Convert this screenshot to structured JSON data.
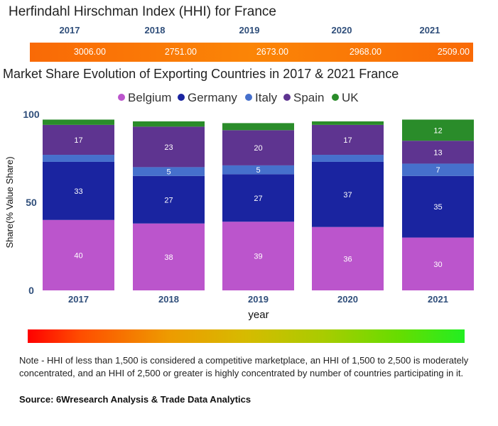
{
  "hhi": {
    "title": "Herfindahl Hirschman Index (HHI) for France",
    "years": [
      "2017",
      "2018",
      "2019",
      "2020",
      "2021"
    ],
    "values": [
      "3006.00",
      "2751.00",
      "2673.00",
      "2968.00",
      "2509.00"
    ],
    "bar_color": "#fb7a06"
  },
  "chart_data": {
    "type": "bar",
    "stacked": true,
    "title": "Market Share Evolution of Exporting Countries in 2017 & 2021 France",
    "xlabel": "year",
    "ylabel": "Share(% Value Share)",
    "ylim": [
      0,
      100
    ],
    "yticks": [
      "0",
      "50",
      "100"
    ],
    "categories": [
      "2017",
      "2018",
      "2019",
      "2020",
      "2021"
    ],
    "legend_position": "top-center",
    "series": [
      {
        "name": "Belgium",
        "color": "#bb55cc",
        "values": [
          40,
          38,
          39,
          36,
          30
        ],
        "labels": [
          "40",
          "38",
          "39",
          "36",
          "30"
        ]
      },
      {
        "name": "Germany",
        "color": "#1a24a0",
        "values": [
          33,
          27,
          27,
          37,
          35
        ],
        "labels": [
          "33",
          "27",
          "27",
          "37",
          "35"
        ]
      },
      {
        "name": "Italy",
        "color": "#4670cc",
        "values": [
          4,
          5,
          5,
          4,
          7
        ],
        "labels": [
          "",
          "5",
          "5",
          "",
          "7"
        ]
      },
      {
        "name": "Spain",
        "color": "#5e3490",
        "values": [
          17,
          23,
          20,
          17,
          13
        ],
        "labels": [
          "17",
          "23",
          "20",
          "17",
          "13"
        ]
      },
      {
        "name": "UK",
        "color": "#2a8c2a",
        "values": [
          3,
          3,
          4,
          2,
          12
        ],
        "labels": [
          "",
          "",
          "",
          "",
          "12"
        ]
      }
    ]
  },
  "footer": {
    "note": "Note - HHI of less than 1,500 is considered a competitive marketplace, an HHI of 1,500 to 2,500 is moderately concentrated, and an HHI of 2,500 or greater is highly concentrated by number of countries participating in it.",
    "source": "Source: 6Wresearch Analysis & Trade Data Analytics"
  }
}
